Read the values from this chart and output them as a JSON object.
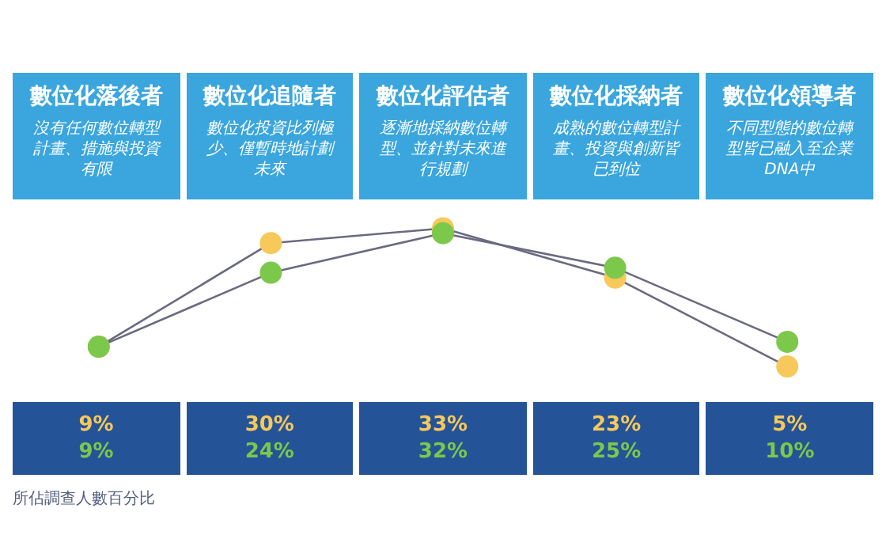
{
  "chart_data": {
    "type": "line",
    "categories": [
      "數位化落後者",
      "數位化追隨者",
      "數位化評估者",
      "數位化採納者",
      "數位化領導者"
    ],
    "series": [
      {
        "color": "#f7c85a",
        "values": [
          9,
          30,
          33,
          23,
          5
        ],
        "value_labels": [
          "9%",
          "30%",
          "33%",
          "23%",
          "5%"
        ]
      },
      {
        "color": "#7cc84a",
        "values": [
          9,
          24,
          32,
          25,
          10
        ],
        "value_labels": [
          "9%",
          "24%",
          "32%",
          "25%",
          "10%"
        ]
      }
    ],
    "annotations": [
      "沒有任何數位轉型計畫、措施與投資有限",
      "數位化投資比列極少、僅暫時地計劃未來",
      "逐漸地採納數位轉型、並針對未來進行規劃",
      "成熟的數位轉型計畫、投資與創新皆已到位",
      "不同型態的數位轉型皆已融入至企業DNA中",
      "所佔調查人數百分比"
    ],
    "marker": "circle"
  }
}
